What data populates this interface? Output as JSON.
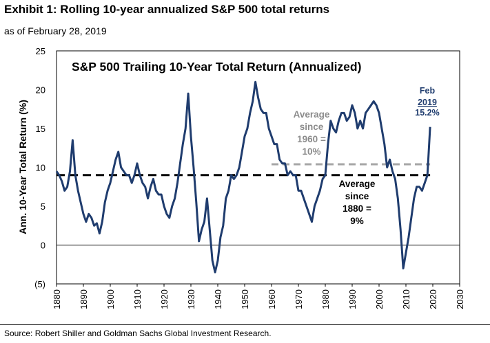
{
  "header": {
    "title": "Exhibit 1: Rolling 10-year annualized S&P 500 total returns",
    "subtitle": "as of February 28, 2019"
  },
  "footer": {
    "source": "Source:  Robert Shiller and Goldman Sachs Global Investment Research."
  },
  "chart_data": {
    "type": "line",
    "title": "S&P 500 Trailing 10-Year Total Return (Annualized)",
    "xlabel": "",
    "ylabel": "Ann. 10-Year Total Return (%)",
    "xlim": [
      1880,
      2030
    ],
    "ylim": [
      -5,
      25
    ],
    "x_ticks": [
      "1880",
      "1890",
      "1900",
      "1910",
      "1920",
      "1930",
      "1940",
      "1950",
      "1960",
      "1970",
      "1980",
      "1990",
      "2000",
      "2010",
      "2020",
      "2030"
    ],
    "y_ticks": [
      "25",
      "20",
      "15",
      "10",
      "5",
      "0",
      "(5)"
    ],
    "y_tick_values": [
      25,
      20,
      15,
      10,
      5,
      0,
      -5
    ],
    "grid": false,
    "colors": {
      "series": "#1f3c6e",
      "avg1880": "#000000",
      "avg1960": "#a6a6a6",
      "annotation_blue": "#1f3c6e",
      "annotation_gray": "#8c8c8c"
    },
    "series": [
      {
        "x": [
          1880,
          1881,
          1882,
          1883,
          1884,
          1885,
          1886,
          1887,
          1888,
          1889,
          1890,
          1891,
          1892,
          1893,
          1894,
          1895,
          1896,
          1897,
          1898,
          1899,
          1900,
          1901,
          1902,
          1903,
          1904,
          1905,
          1906,
          1907,
          1908,
          1909,
          1910,
          1911,
          1912,
          1913,
          1914,
          1915,
          1916,
          1917,
          1918,
          1919,
          1920,
          1921,
          1922,
          1923,
          1924,
          1925,
          1926,
          1927,
          1928,
          1929,
          1930,
          1931,
          1932,
          1933,
          1934,
          1935,
          1936,
          1937,
          1938,
          1939,
          1940,
          1941,
          1942,
          1943,
          1944,
          1945,
          1946,
          1947,
          1948,
          1949,
          1950,
          1951,
          1952,
          1953,
          1954,
          1955,
          1956,
          1957,
          1958,
          1959,
          1960,
          1961,
          1962,
          1963,
          1964,
          1965,
          1966,
          1967,
          1968,
          1969,
          1970,
          1971,
          1972,
          1973,
          1974,
          1975,
          1976,
          1977,
          1978,
          1979,
          1980,
          1981,
          1982,
          1983,
          1984,
          1985,
          1986,
          1987,
          1988,
          1989,
          1990,
          1991,
          1992,
          1993,
          1994,
          1995,
          1996,
          1997,
          1998,
          1999,
          2000,
          2001,
          2002,
          2003,
          2004,
          2005,
          2006,
          2007,
          2008,
          2009,
          2010,
          2011,
          2012,
          2013,
          2014,
          2015,
          2016,
          2017,
          2018,
          2019
        ],
        "values": [
          9.5,
          9.0,
          8.2,
          7.0,
          7.5,
          9.5,
          13.5,
          9.0,
          7.0,
          5.5,
          4.0,
          3.0,
          4.0,
          3.5,
          2.5,
          2.8,
          1.5,
          3.0,
          5.5,
          7.0,
          8.0,
          9.5,
          11.0,
          12.0,
          10.0,
          9.5,
          9.0,
          9.0,
          8.0,
          9.0,
          10.5,
          9.0,
          8.0,
          7.5,
          6.0,
          7.5,
          8.5,
          7.0,
          6.5,
          6.5,
          5.0,
          4.0,
          3.5,
          5.0,
          6.0,
          8.0,
          10.5,
          13.0,
          15.0,
          19.5,
          14.0,
          10.0,
          5.5,
          0.5,
          2.0,
          3.0,
          6.0,
          2.0,
          -2.0,
          -3.5,
          -2.0,
          1.0,
          2.5,
          6.0,
          7.0,
          9.0,
          8.5,
          9.0,
          10.0,
          12.0,
          14.0,
          15.0,
          17.0,
          18.5,
          21.0,
          19.0,
          17.5,
          17.0,
          17.0,
          15.0,
          14.0,
          13.0,
          13.0,
          11.0,
          10.5,
          10.5,
          9.0,
          9.5,
          9.0,
          9.0,
          7.0,
          7.0,
          6.0,
          5.0,
          4.0,
          3.0,
          5.0,
          6.0,
          7.0,
          8.5,
          9.0,
          13.0,
          16.0,
          15.0,
          14.5,
          16.0,
          17.0,
          17.0,
          16.0,
          16.5,
          18.0,
          17.0,
          15.0,
          16.0,
          15.0,
          17.0,
          17.5,
          18.0,
          18.5,
          18.0,
          17.0,
          15.0,
          13.0,
          10.0,
          11.0,
          9.5,
          8.5,
          6.0,
          2.0,
          -3.0,
          -1.0,
          1.0,
          3.5,
          6.0,
          7.5,
          7.5,
          7.0,
          8.0,
          9.0,
          15.2
        ]
      }
    ],
    "reference_lines": [
      {
        "label": "Average since 1880 = 9%",
        "value": 9.0,
        "x_range": [
          1880,
          2019
        ]
      },
      {
        "label": "Average since 1960 = 10%",
        "value": 10.4,
        "x_range": [
          1960,
          2019
        ]
      }
    ],
    "annotations": {
      "last_point": {
        "month": "Feb",
        "year": "2019",
        "value": "15.2%"
      },
      "avg1960": [
        "Average",
        "since",
        "1960 =",
        "10%"
      ],
      "avg1880": [
        "Average",
        "since",
        "1880 =",
        "9%"
      ]
    }
  }
}
